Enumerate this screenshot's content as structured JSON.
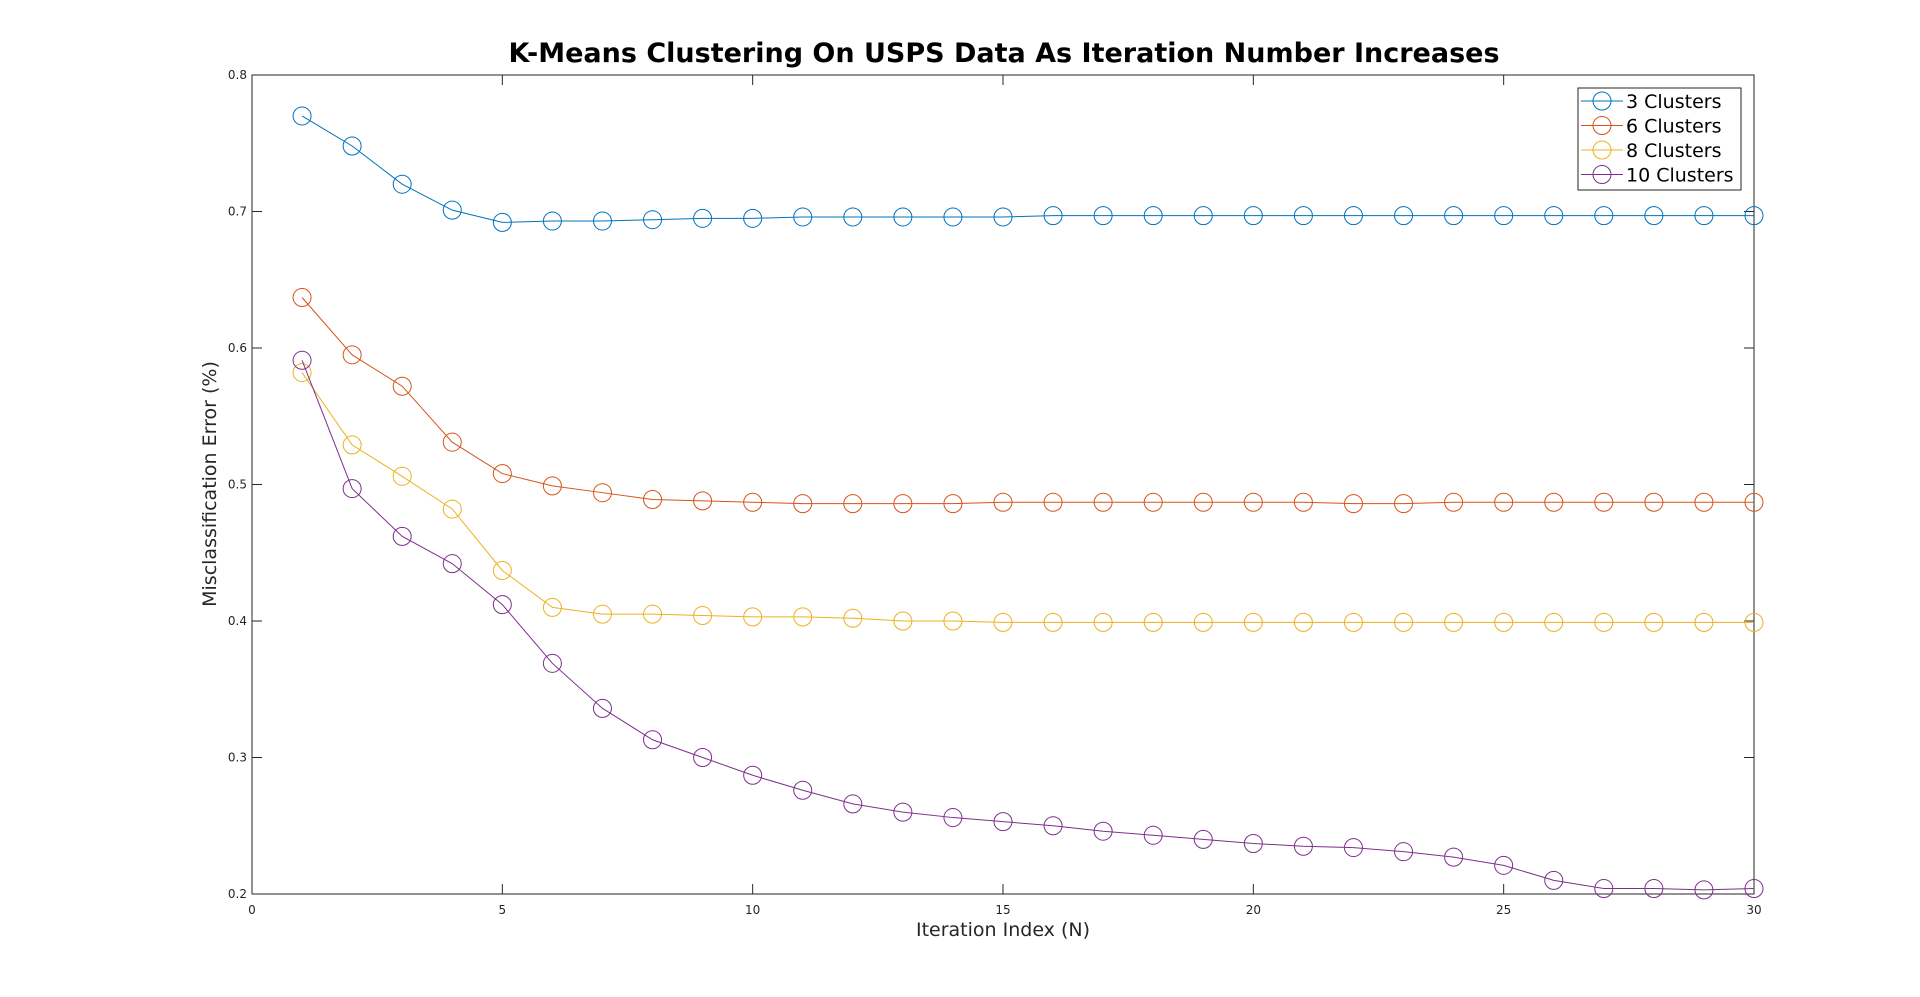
{
  "chart_data": {
    "type": "line",
    "title": "K-Means Clustering On USPS Data As Iteration Number Increases",
    "xlabel": "Iteration Index (N)",
    "ylabel": "Misclassification Error (%)",
    "xlim": [
      0,
      30
    ],
    "ylim": [
      0.2,
      0.8
    ],
    "xticks": [
      0,
      5,
      10,
      15,
      20,
      25,
      30
    ],
    "yticks": [
      0.2,
      0.3,
      0.4,
      0.5,
      0.6,
      0.7,
      0.8
    ],
    "xtick_labels": [
      "0",
      "5",
      "10",
      "15",
      "20",
      "25",
      "30"
    ],
    "ytick_labels": [
      "0.2",
      "0.3",
      "0.4",
      "0.5",
      "0.6",
      "0.7",
      "0.8"
    ],
    "grid": false,
    "legend_position": "top-right",
    "marker": "circle",
    "x": [
      1,
      2,
      3,
      4,
      5,
      6,
      7,
      8,
      9,
      10,
      11,
      12,
      13,
      14,
      15,
      16,
      17,
      18,
      19,
      20,
      21,
      22,
      23,
      24,
      25,
      26,
      27,
      28,
      29,
      30
    ],
    "series": [
      {
        "name": "3 Clusters",
        "color": "#0072BD",
        "values": [
          0.77,
          0.748,
          0.72,
          0.701,
          0.692,
          0.693,
          0.693,
          0.694,
          0.695,
          0.695,
          0.696,
          0.696,
          0.696,
          0.696,
          0.696,
          0.697,
          0.697,
          0.697,
          0.697,
          0.697,
          0.697,
          0.697,
          0.697,
          0.697,
          0.697,
          0.697,
          0.697,
          0.697,
          0.697,
          0.697
        ]
      },
      {
        "name": "6 Clusters",
        "color": "#D95319",
        "values": [
          0.637,
          0.595,
          0.572,
          0.531,
          0.508,
          0.499,
          0.494,
          0.489,
          0.488,
          0.487,
          0.486,
          0.486,
          0.486,
          0.486,
          0.487,
          0.487,
          0.487,
          0.487,
          0.487,
          0.487,
          0.487,
          0.486,
          0.486,
          0.487,
          0.487,
          0.487,
          0.487,
          0.487,
          0.487,
          0.487
        ]
      },
      {
        "name": "8 Clusters",
        "color": "#EDB120",
        "values": [
          0.582,
          0.529,
          0.506,
          0.482,
          0.437,
          0.41,
          0.405,
          0.405,
          0.404,
          0.403,
          0.403,
          0.402,
          0.4,
          0.4,
          0.399,
          0.399,
          0.399,
          0.399,
          0.399,
          0.399,
          0.399,
          0.399,
          0.399,
          0.399,
          0.399,
          0.399,
          0.399,
          0.399,
          0.399,
          0.399
        ]
      },
      {
        "name": "10 Clusters",
        "color": "#7E2F8E",
        "values": [
          0.591,
          0.497,
          0.462,
          0.442,
          0.412,
          0.369,
          0.336,
          0.313,
          0.3,
          0.287,
          0.276,
          0.266,
          0.26,
          0.256,
          0.253,
          0.25,
          0.246,
          0.243,
          0.24,
          0.237,
          0.235,
          0.234,
          0.231,
          0.227,
          0.221,
          0.21,
          0.204,
          0.204,
          0.203,
          0.204
        ]
      }
    ]
  }
}
